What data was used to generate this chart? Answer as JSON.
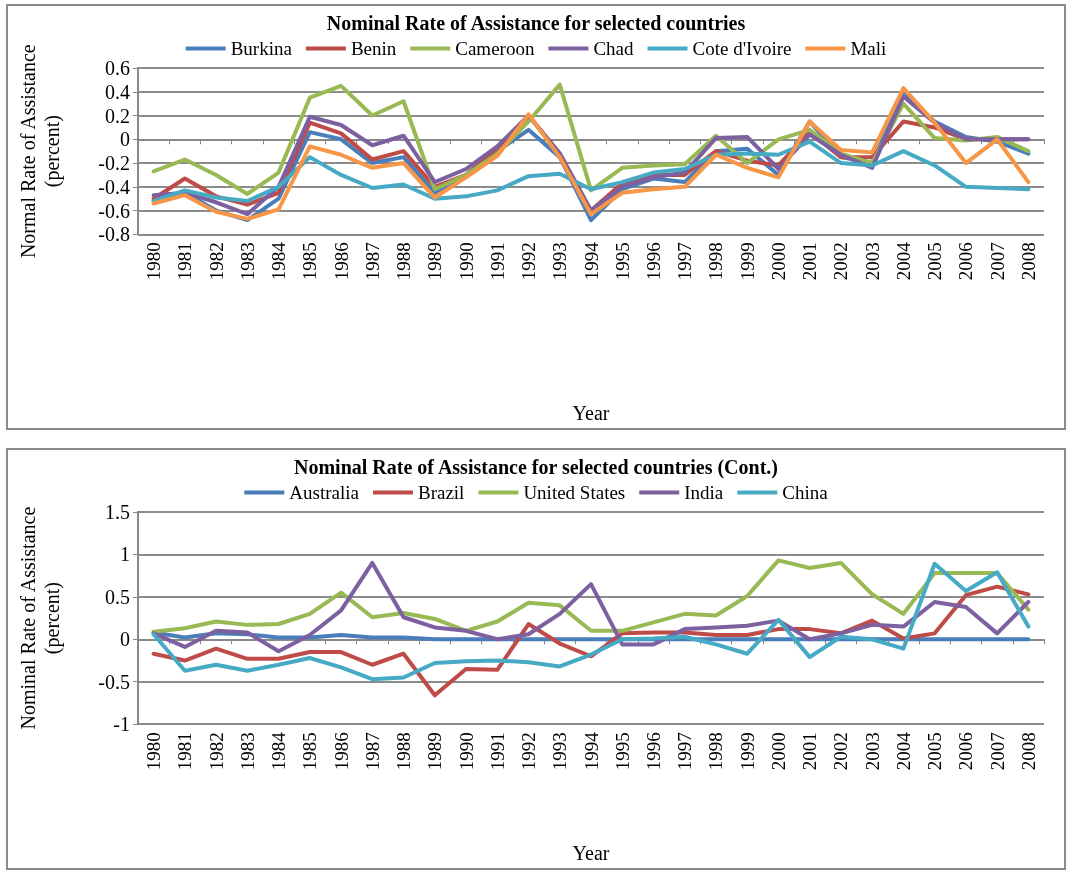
{
  "chart_data": [
    {
      "type": "line",
      "title": "Nominal Rate of Assistance for selected countries",
      "xlabel": "Year",
      "ylabel": "Normal Rate of Assistance (percent)",
      "categories": [
        "1980",
        "1981",
        "1982",
        "1983",
        "1984",
        "1985",
        "1986",
        "1987",
        "1988",
        "1989",
        "1990",
        "1991",
        "1992",
        "1993",
        "1994",
        "1995",
        "1996",
        "1997",
        "1998",
        "1999",
        "2000",
        "2001",
        "2002",
        "2003",
        "2004",
        "2005",
        "2006",
        "2007",
        "2008"
      ],
      "ylim": [
        -0.8,
        0.6
      ],
      "yticks": [
        -0.8,
        -0.6,
        -0.4,
        -0.2,
        0,
        0.2,
        0.4,
        0.6
      ],
      "grid": "y",
      "legend": "top",
      "marker": "none",
      "line_style": "solid",
      "series": [
        {
          "name": "Burkina",
          "color": "#4a7ebb",
          "values": [
            -0.52,
            -0.45,
            -0.6,
            -0.68,
            -0.5,
            0.06,
            0.0,
            -0.2,
            -0.15,
            -0.45,
            -0.3,
            -0.1,
            0.08,
            -0.15,
            -0.68,
            -0.42,
            -0.33,
            -0.36,
            -0.1,
            -0.08,
            -0.3,
            0.15,
            -0.15,
            -0.2,
            0.38,
            0.15,
            0.02,
            -0.02,
            -0.12
          ]
        },
        {
          "name": "Benin",
          "color": "#be4b48",
          "values": [
            -0.5,
            -0.33,
            -0.48,
            -0.55,
            -0.45,
            0.14,
            0.05,
            -0.17,
            -0.1,
            -0.4,
            -0.3,
            -0.08,
            0.2,
            -0.12,
            -0.6,
            -0.37,
            -0.3,
            -0.3,
            -0.1,
            -0.18,
            -0.22,
            0.06,
            -0.15,
            -0.15,
            0.15,
            0.1,
            0.0,
            0.0,
            0.0
          ]
        },
        {
          "name": "Cameroon",
          "color": "#98b954",
          "values": [
            -0.27,
            -0.17,
            -0.3,
            -0.46,
            -0.28,
            0.35,
            0.45,
            0.2,
            0.32,
            -0.42,
            -0.3,
            -0.12,
            0.15,
            0.46,
            -0.43,
            -0.24,
            -0.22,
            -0.21,
            0.03,
            -0.2,
            0.0,
            0.08,
            -0.12,
            -0.2,
            0.3,
            0.01,
            -0.01,
            0.02,
            -0.1
          ]
        },
        {
          "name": "Chad",
          "color": "#7d60a0",
          "values": [
            -0.47,
            -0.45,
            -0.53,
            -0.63,
            -0.4,
            0.19,
            0.12,
            -0.05,
            0.03,
            -0.36,
            -0.25,
            -0.06,
            0.2,
            -0.12,
            -0.6,
            -0.4,
            -0.32,
            -0.28,
            0.01,
            0.02,
            -0.25,
            0.04,
            -0.13,
            -0.24,
            0.36,
            0.14,
            0.0,
            0.0,
            0.0
          ]
        },
        {
          "name": "Cote d'Ivoire",
          "color": "#46aac5",
          "values": [
            -0.52,
            -0.43,
            -0.49,
            -0.52,
            -0.4,
            -0.15,
            -0.3,
            -0.41,
            -0.38,
            -0.5,
            -0.48,
            -0.43,
            -0.31,
            -0.29,
            -0.42,
            -0.36,
            -0.28,
            -0.25,
            -0.13,
            -0.12,
            -0.13,
            -0.02,
            -0.2,
            -0.22,
            -0.1,
            -0.22,
            -0.4,
            -0.41,
            -0.42
          ]
        },
        {
          "name": "Mali",
          "color": "#f79646",
          "values": [
            -0.54,
            -0.47,
            -0.61,
            -0.67,
            -0.59,
            -0.06,
            -0.13,
            -0.24,
            -0.2,
            -0.49,
            -0.32,
            -0.14,
            0.21,
            -0.15,
            -0.63,
            -0.45,
            -0.42,
            -0.4,
            -0.13,
            -0.24,
            -0.32,
            0.15,
            -0.09,
            -0.11,
            0.43,
            0.14,
            -0.2,
            0.0,
            -0.36
          ]
        }
      ]
    },
    {
      "type": "line",
      "title": "Nominal Rate of Assistance for selected countries (Cont.)",
      "xlabel": "Year",
      "ylabel": "Nominal Rate of Assistance (percent)",
      "categories": [
        "1980",
        "1981",
        "1982",
        "1983",
        "1984",
        "1985",
        "1986",
        "1987",
        "1988",
        "1989",
        "1990",
        "1991",
        "1992",
        "1993",
        "1994",
        "1995",
        "1996",
        "1997",
        "1998",
        "1999",
        "2000",
        "2001",
        "2002",
        "2003",
        "2004",
        "2005",
        "2006",
        "2007",
        "2008"
      ],
      "ylim": [
        -1,
        1.5
      ],
      "yticks": [
        -1,
        -0.5,
        0,
        0.5,
        1,
        1.5
      ],
      "grid": "y",
      "legend": "top",
      "marker": "none",
      "line_style": "solid",
      "series": [
        {
          "name": "Australia",
          "color": "#4a7ebb",
          "values": [
            0.08,
            0.02,
            0.07,
            0.06,
            0.02,
            0.02,
            0.05,
            0.02,
            0.02,
            0.0,
            0.0,
            0.0,
            0.0,
            0.0,
            0.0,
            0.0,
            0.0,
            0.0,
            0.0,
            0.0,
            0.0,
            0.0,
            0.0,
            0.0,
            0.0,
            0.0,
            0.0,
            0.0,
            0.0
          ]
        },
        {
          "name": "Brazil",
          "color": "#be4b48",
          "values": [
            -0.17,
            -0.25,
            -0.11,
            -0.23,
            -0.23,
            -0.15,
            -0.15,
            -0.3,
            -0.17,
            -0.66,
            -0.35,
            -0.36,
            0.18,
            -0.05,
            -0.2,
            0.07,
            0.08,
            0.08,
            0.05,
            0.05,
            0.12,
            0.12,
            0.07,
            0.22,
            0.01,
            0.07,
            0.52,
            0.62,
            0.53
          ]
        },
        {
          "name": "United States",
          "color": "#98b954",
          "values": [
            0.09,
            0.13,
            0.21,
            0.17,
            0.18,
            0.3,
            0.55,
            0.26,
            0.31,
            0.24,
            0.1,
            0.21,
            0.43,
            0.4,
            0.1,
            0.1,
            0.2,
            0.3,
            0.28,
            0.51,
            0.93,
            0.84,
            0.9,
            0.53,
            0.3,
            0.78,
            0.78,
            0.78,
            0.35
          ]
        },
        {
          "name": "India",
          "color": "#7d60a0",
          "values": [
            0.07,
            -0.09,
            0.1,
            0.08,
            -0.14,
            0.05,
            0.34,
            0.9,
            0.26,
            0.14,
            0.1,
            0.0,
            0.06,
            0.3,
            0.65,
            -0.06,
            -0.06,
            0.12,
            0.14,
            0.16,
            0.22,
            0.0,
            0.07,
            0.17,
            0.15,
            0.44,
            0.38,
            0.07,
            0.44
          ]
        },
        {
          "name": "China",
          "color": "#46aac5",
          "values": [
            0.06,
            -0.37,
            -0.3,
            -0.37,
            -0.3,
            -0.22,
            -0.33,
            -0.47,
            -0.45,
            -0.28,
            -0.26,
            -0.25,
            -0.27,
            -0.32,
            -0.18,
            0.0,
            0.01,
            0.03,
            -0.06,
            -0.17,
            0.23,
            -0.21,
            0.03,
            0.0,
            -0.11,
            0.89,
            0.57,
            0.79,
            0.15
          ]
        }
      ]
    }
  ]
}
